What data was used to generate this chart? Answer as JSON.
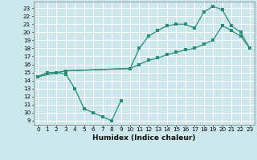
{
  "xlabel": "Humidex (Indice chaleur)",
  "bg_color": "#cce8ec",
  "grid_color": "#ffffff",
  "line_color": "#2e8b74",
  "xlim": [
    -0.5,
    23.5
  ],
  "ylim": [
    8.5,
    23.8
  ],
  "yticks": [
    9,
    10,
    11,
    12,
    13,
    14,
    15,
    16,
    17,
    18,
    19,
    20,
    21,
    22,
    23
  ],
  "xticks": [
    0,
    1,
    2,
    3,
    4,
    5,
    6,
    7,
    8,
    9,
    10,
    11,
    12,
    13,
    14,
    15,
    16,
    17,
    18,
    19,
    20,
    21,
    22,
    23
  ],
  "curve1_x": [
    0,
    1,
    2,
    3,
    4,
    5,
    6,
    7,
    8,
    9
  ],
  "curve1_y": [
    14.5,
    15.0,
    15.0,
    14.8,
    13.0,
    10.5,
    10.0,
    9.5,
    9.0,
    11.5
  ],
  "curve2_x": [
    0,
    3,
    10,
    11,
    12,
    13,
    14,
    15,
    16,
    17,
    18,
    19,
    20,
    21,
    22,
    23
  ],
  "curve2_y": [
    14.5,
    15.2,
    15.5,
    18.0,
    19.5,
    20.2,
    20.8,
    21.0,
    21.0,
    20.5,
    22.5,
    23.2,
    22.8,
    20.8,
    20.0,
    18.0
  ],
  "curve3_x": [
    0,
    3,
    10,
    11,
    12,
    13,
    14,
    15,
    16,
    17,
    18,
    19,
    20,
    21,
    22,
    23
  ],
  "curve3_y": [
    14.5,
    15.2,
    15.5,
    16.0,
    16.5,
    16.8,
    17.2,
    17.5,
    17.8,
    18.0,
    18.5,
    19.0,
    20.8,
    20.2,
    19.5,
    18.0
  ],
  "xlabel_fontsize": 6.5,
  "tick_fontsize": 5.2
}
